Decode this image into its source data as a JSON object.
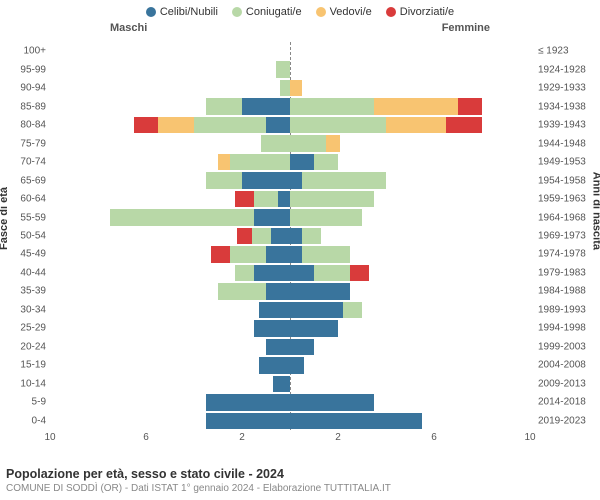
{
  "legend": [
    {
      "label": "Celibi/Nubili",
      "color": "#39749c"
    },
    {
      "label": "Coniugati/e",
      "color": "#b8d8a7"
    },
    {
      "label": "Vedovi/e",
      "color": "#f8c471"
    },
    {
      "label": "Divorziati/e",
      "color": "#d93b3b"
    }
  ],
  "gender_labels": {
    "male": "Maschi",
    "female": "Femmine"
  },
  "y_title_left": "Fasce di età",
  "y_title_right": "Anni di nascita",
  "x_max": 10,
  "x_ticks_male": [
    10,
    6,
    2
  ],
  "x_ticks_female": [
    2,
    6,
    10
  ],
  "footer": {
    "title": "Popolazione per età, sesso e stato civile - 2024",
    "subtitle": "COMUNE DI SODDÌ (OR) - Dati ISTAT 1° gennaio 2024 - Elaborazione TUTTITALIA.IT"
  },
  "rows": [
    {
      "age": "100+",
      "birth": "≤ 1923",
      "m": [
        0,
        0,
        0,
        0
      ],
      "f": [
        0,
        0,
        0,
        0
      ]
    },
    {
      "age": "95-99",
      "birth": "1924-1928",
      "m": [
        0,
        0.6,
        0,
        0
      ],
      "f": [
        0,
        0,
        0,
        0
      ]
    },
    {
      "age": "90-94",
      "birth": "1929-1933",
      "m": [
        0,
        0.4,
        0,
        0
      ],
      "f": [
        0,
        0,
        0.5,
        0
      ]
    },
    {
      "age": "85-89",
      "birth": "1934-1938",
      "m": [
        2.0,
        1.5,
        0,
        0
      ],
      "f": [
        0,
        3.5,
        3.5,
        1.0
      ]
    },
    {
      "age": "80-84",
      "birth": "1939-1943",
      "m": [
        1.0,
        3.0,
        1.5,
        1.0
      ],
      "f": [
        0,
        4.0,
        2.5,
        1.5
      ]
    },
    {
      "age": "75-79",
      "birth": "1944-1948",
      "m": [
        0,
        1.2,
        0,
        0
      ],
      "f": [
        0,
        1.5,
        0.6,
        0
      ]
    },
    {
      "age": "70-74",
      "birth": "1949-1953",
      "m": [
        0,
        2.5,
        0.5,
        0
      ],
      "f": [
        1.0,
        1.0,
        0,
        0
      ]
    },
    {
      "age": "65-69",
      "birth": "1954-1958",
      "m": [
        2.0,
        1.5,
        0,
        0
      ],
      "f": [
        0.5,
        3.5,
        0,
        0
      ]
    },
    {
      "age": "60-64",
      "birth": "1959-1963",
      "m": [
        0.5,
        1.0,
        0,
        0.8
      ],
      "f": [
        0,
        3.5,
        0,
        0
      ]
    },
    {
      "age": "55-59",
      "birth": "1964-1968",
      "m": [
        1.5,
        6.0,
        0,
        0
      ],
      "f": [
        0,
        3.0,
        0,
        0
      ]
    },
    {
      "age": "50-54",
      "birth": "1969-1973",
      "m": [
        0.8,
        0.8,
        0,
        0.6
      ],
      "f": [
        0.5,
        0.8,
        0,
        0
      ]
    },
    {
      "age": "45-49",
      "birth": "1974-1978",
      "m": [
        1.0,
        1.5,
        0,
        0.8
      ],
      "f": [
        0.5,
        2.0,
        0,
        0
      ]
    },
    {
      "age": "40-44",
      "birth": "1979-1983",
      "m": [
        1.5,
        0.8,
        0,
        0
      ],
      "f": [
        1.0,
        1.5,
        0,
        0.8
      ]
    },
    {
      "age": "35-39",
      "birth": "1984-1988",
      "m": [
        1.0,
        2.0,
        0,
        0
      ],
      "f": [
        2.5,
        0,
        0,
        0
      ]
    },
    {
      "age": "30-34",
      "birth": "1989-1993",
      "m": [
        1.3,
        0,
        0,
        0
      ],
      "f": [
        2.2,
        0.8,
        0,
        0
      ]
    },
    {
      "age": "25-29",
      "birth": "1994-1998",
      "m": [
        1.5,
        0,
        0,
        0
      ],
      "f": [
        2.0,
        0,
        0,
        0
      ]
    },
    {
      "age": "20-24",
      "birth": "1999-2003",
      "m": [
        1.0,
        0,
        0,
        0
      ],
      "f": [
        1.0,
        0,
        0,
        0
      ]
    },
    {
      "age": "15-19",
      "birth": "2004-2008",
      "m": [
        1.3,
        0,
        0,
        0
      ],
      "f": [
        0.6,
        0,
        0,
        0
      ]
    },
    {
      "age": "10-14",
      "birth": "2009-2013",
      "m": [
        0.7,
        0,
        0,
        0
      ],
      "f": [
        0,
        0,
        0,
        0
      ]
    },
    {
      "age": "5-9",
      "birth": "2014-2018",
      "m": [
        3.5,
        0,
        0,
        0
      ],
      "f": [
        3.5,
        0,
        0,
        0
      ]
    },
    {
      "age": "0-4",
      "birth": "2019-2023",
      "m": [
        3.5,
        0,
        0,
        0
      ],
      "f": [
        5.5,
        0,
        0,
        0
      ]
    }
  ]
}
